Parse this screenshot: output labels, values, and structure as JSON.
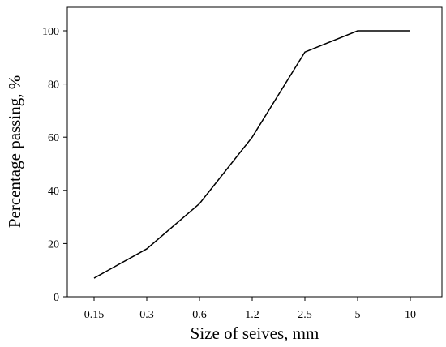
{
  "chart_data": {
    "type": "line",
    "title": "",
    "xlabel": "Size of seives, mm",
    "ylabel": "Percentage passing, %",
    "x_scale": "categorical",
    "categories": [
      "0.15",
      "0.3",
      "0.6",
      "1.2",
      "2.5",
      "5",
      "10"
    ],
    "series": [
      {
        "values": [
          7,
          18,
          35,
          60,
          92,
          100,
          100
        ]
      }
    ],
    "ylim": [
      0,
      110
    ],
    "yticks": [
      0,
      20,
      40,
      60,
      80,
      100
    ],
    "grid": false,
    "legend": "none",
    "line_color": "#000000"
  }
}
